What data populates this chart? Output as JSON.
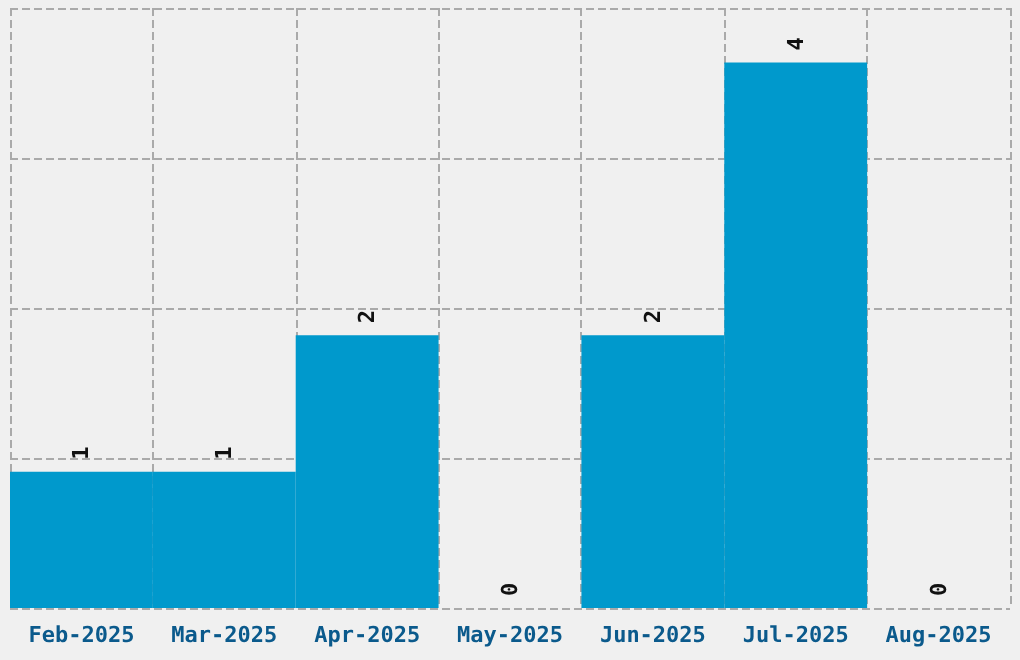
{
  "chart_data": {
    "type": "bar",
    "categories": [
      "Feb-2025",
      "Mar-2025",
      "Apr-2025",
      "May-2025",
      "Jun-2025",
      "Jul-2025",
      "Aug-2025"
    ],
    "values": [
      1,
      1,
      2,
      0,
      2,
      4,
      0
    ],
    "color": "#0099cc",
    "ylim": [
      0,
      4.4
    ],
    "yticks": [
      {
        "value": 0,
        "label": null
      },
      {
        "value": 1.1,
        "label": null
      },
      {
        "value": 2.2,
        "label": null
      },
      {
        "value": 3.3,
        "label": null
      },
      {
        "value": 4.4,
        "label": null
      }
    ],
    "tick_labels": "x",
    "grid": true,
    "data_labels": true
  }
}
